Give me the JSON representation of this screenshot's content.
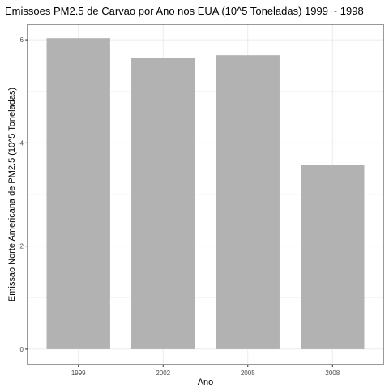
{
  "chart_data": {
    "type": "bar",
    "title": "Emissoes PM2.5 de Carvao por Ano nos EUA (10^5 Toneladas) 1999 ~ 1998",
    "xlabel": "Ano",
    "ylabel": "Emissao Norte Americana de PM2.5 (10^5 Toneladas)",
    "categories": [
      "1999",
      "2002",
      "2005",
      "2008"
    ],
    "values": [
      6.03,
      5.65,
      5.7,
      3.58
    ],
    "ylim": [
      -0.3,
      6.3
    ],
    "yticks": [
      0,
      2,
      4,
      6
    ],
    "ytick_labels": [
      "0",
      "2",
      "4",
      "6"
    ],
    "grid": true,
    "bar_color": "#b2b2b2",
    "grid_color": "#ebebeb",
    "panel_border_color": "#333333"
  }
}
